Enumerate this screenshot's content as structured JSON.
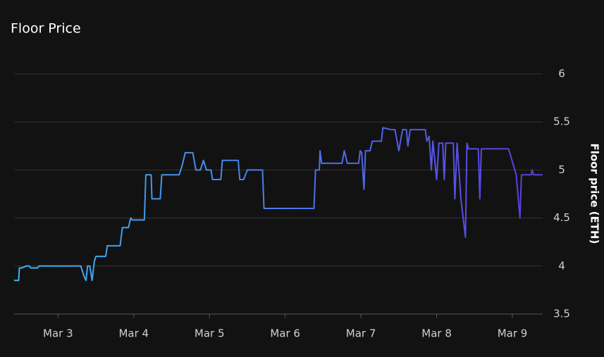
{
  "chart_data": {
    "type": "line",
    "title": "Floor Price",
    "y_label": "Floor price (ETH)",
    "gradient": [
      "#3bb8f2",
      "#5a3ce0"
    ],
    "grid": true,
    "y_axis_side": "right",
    "xlim": [
      2.42,
      9.4
    ],
    "xticks": [
      {
        "value": 3,
        "label": "Mar 3"
      },
      {
        "value": 4,
        "label": "Mar 4"
      },
      {
        "value": 5,
        "label": "Mar 5"
      },
      {
        "value": 6,
        "label": "Mar 6"
      },
      {
        "value": 7,
        "label": "Mar 7"
      },
      {
        "value": 8,
        "label": "Mar 8"
      },
      {
        "value": 9,
        "label": "Mar 9"
      }
    ],
    "ylim": [
      3.5,
      6
    ],
    "yticks": [
      3.5,
      4,
      4.5,
      5,
      5.5,
      6
    ],
    "x": [
      2.42,
      2.48,
      2.49,
      2.52,
      2.58,
      2.62,
      2.64,
      2.73,
      2.75,
      3.3,
      3.35,
      3.37,
      3.39,
      3.42,
      3.45,
      3.48,
      3.5,
      3.63,
      3.65,
      3.82,
      3.85,
      3.93,
      3.96,
      3.98,
      4.14,
      4.16,
      4.23,
      4.24,
      4.35,
      4.37,
      4.6,
      4.64,
      4.68,
      4.78,
      4.82,
      4.88,
      4.92,
      4.96,
      5.02,
      5.04,
      5.15,
      5.17,
      5.38,
      5.4,
      5.45,
      5.5,
      5.7,
      5.72,
      6.0,
      6.38,
      6.4,
      6.45,
      6.46,
      6.48,
      6.75,
      6.78,
      6.82,
      6.97,
      6.99,
      7.01,
      7.04,
      7.06,
      7.12,
      7.15,
      7.27,
      7.29,
      7.4,
      7.45,
      7.5,
      7.55,
      7.6,
      7.62,
      7.65,
      7.85,
      7.87,
      7.9,
      7.93,
      7.95,
      8.0,
      8.03,
      8.08,
      8.1,
      8.12,
      8.22,
      8.24,
      8.27,
      8.32,
      8.35,
      8.38,
      8.4,
      8.42,
      8.55,
      8.57,
      8.59,
      8.95,
      9.05,
      9.1,
      9.12,
      9.25,
      9.26,
      9.28,
      9.4
    ],
    "values": [
      3.85,
      3.85,
      3.98,
      3.98,
      4.0,
      4.0,
      3.98,
      3.98,
      4.0,
      4.0,
      3.88,
      3.85,
      4.0,
      4.0,
      3.85,
      4.05,
      4.1,
      4.1,
      4.21,
      4.21,
      4.4,
      4.4,
      4.5,
      4.48,
      4.48,
      4.95,
      4.95,
      4.7,
      4.7,
      4.95,
      4.95,
      5.05,
      5.18,
      5.18,
      5.0,
      5.0,
      5.1,
      5.0,
      5.0,
      4.9,
      4.9,
      5.1,
      5.1,
      4.9,
      4.9,
      5.0,
      5.0,
      4.6,
      4.6,
      4.6,
      5.0,
      5.0,
      5.2,
      5.07,
      5.07,
      5.2,
      5.07,
      5.07,
      5.2,
      5.18,
      4.8,
      5.2,
      5.2,
      5.3,
      5.3,
      5.44,
      5.42,
      5.42,
      5.2,
      5.42,
      5.42,
      5.25,
      5.42,
      5.42,
      5.3,
      5.35,
      5.0,
      5.3,
      4.9,
      5.28,
      5.28,
      4.9,
      5.28,
      5.28,
      4.7,
      5.28,
      4.7,
      4.5,
      4.3,
      5.28,
      5.22,
      5.22,
      4.7,
      5.22,
      5.22,
      4.95,
      4.5,
      4.95,
      4.95,
      5.0,
      4.95,
      4.95
    ]
  }
}
